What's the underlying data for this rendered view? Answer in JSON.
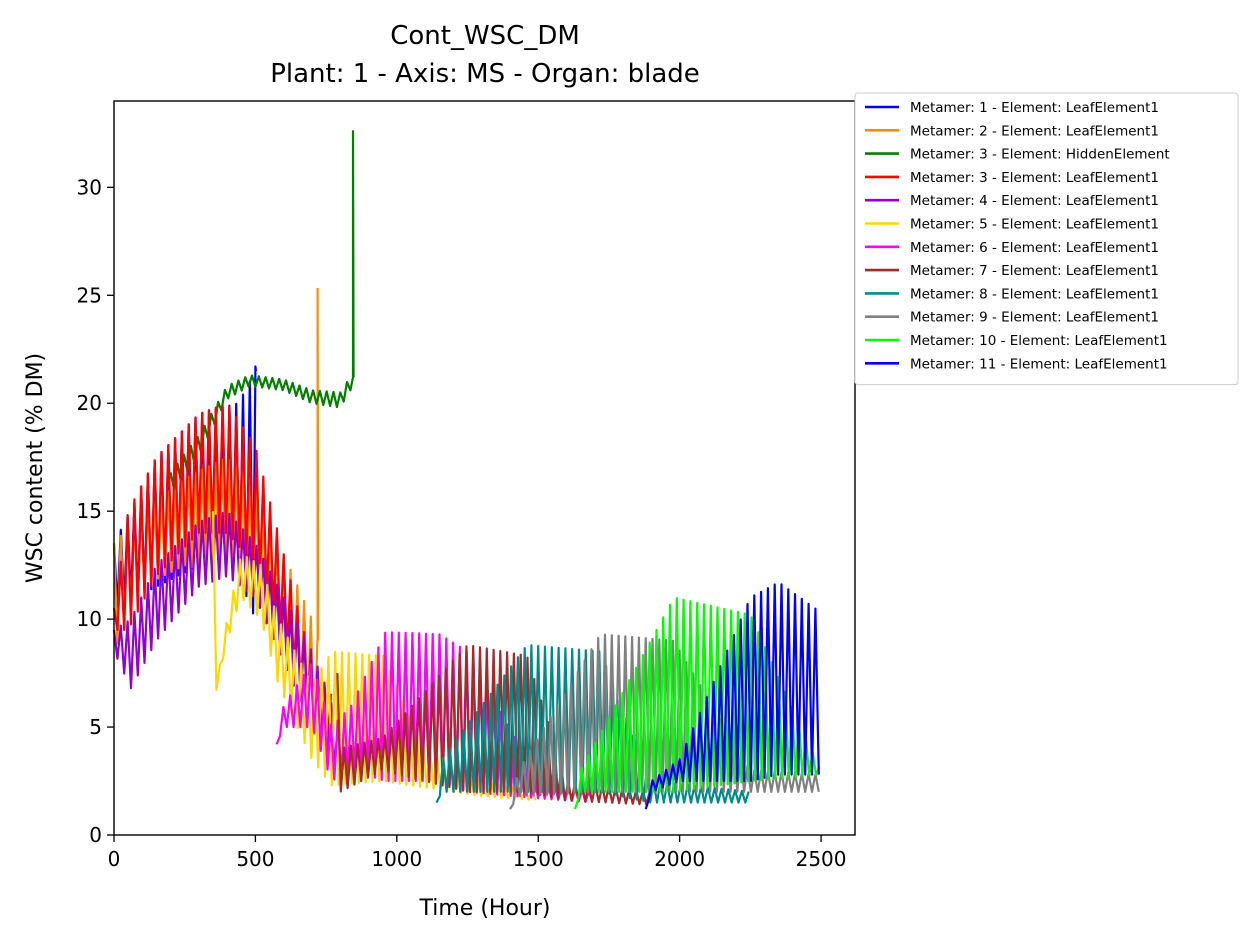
{
  "chart_data": {
    "type": "line",
    "title": "Cont_WSC_DM",
    "subtitle": "Plant: 1 - Axis: MS - Organ: blade",
    "xlabel": "Time (Hour)",
    "ylabel": "WSC content (% DM)",
    "xlim": [
      0,
      2620
    ],
    "ylim": [
      0,
      34
    ],
    "xticks": [
      0,
      500,
      1000,
      1500,
      2000,
      2500
    ],
    "yticks": [
      0,
      5,
      10,
      15,
      20,
      25,
      30
    ],
    "xtick_labels": [
      "0",
      "500",
      "1000",
      "1500",
      "2000",
      "2500"
    ],
    "ytick_labels": [
      "0",
      "5",
      "10",
      "15",
      "20",
      "25",
      "30"
    ],
    "grid": false,
    "legend_position": "outside-right",
    "series": [
      {
        "name": "Metamer: 1 - Element: LeafElement1",
        "color": "#0000ff",
        "start": 0,
        "end": 500,
        "osc_day": 24,
        "env": [
          [
            0,
            10.5,
            13.5
          ],
          [
            150,
            11.5,
            17.5
          ],
          [
            300,
            12.5,
            19.5
          ],
          [
            440,
            12.0,
            20.0
          ],
          [
            500,
            10.0,
            21.5
          ]
        ],
        "spike": [
          500,
          21.7
        ]
      },
      {
        "name": "Metamer: 2 - Element: LeafElement1",
        "color": "#ff8c00",
        "start": 0,
        "end": 725,
        "osc_day": 24,
        "env": [
          [
            0,
            8.5,
            13.5
          ],
          [
            100,
            11.5,
            15.0
          ],
          [
            250,
            12.5,
            16.5
          ],
          [
            400,
            12.0,
            17.5
          ],
          [
            500,
            11.0,
            16.0
          ],
          [
            600,
            8.0,
            13.0
          ],
          [
            700,
            5.0,
            10.0
          ],
          [
            725,
            4.0,
            9.0
          ]
        ],
        "spike": [
          720,
          25.3
        ]
      },
      {
        "name": "Metamer: 3 - Element: HiddenElement",
        "color": "#008000",
        "start": 200,
        "end": 845,
        "osc_day": 24,
        "env": [
          [
            200,
            15.8,
            16.8
          ],
          [
            300,
            17.5,
            18.5
          ],
          [
            400,
            20.2,
            20.8
          ],
          [
            480,
            20.8,
            21.3
          ],
          [
            600,
            20.6,
            21.1
          ],
          [
            700,
            20.0,
            20.6
          ],
          [
            800,
            19.8,
            20.5
          ],
          [
            835,
            20.6,
            21.2
          ]
        ],
        "spike": [
          845,
          32.6
        ]
      },
      {
        "name": "Metamer: 3 - Element: LeafElement1",
        "color": "#ff0000",
        "start": 0,
        "end": 770,
        "osc_day": 24,
        "env": [
          [
            0,
            9.5,
            10.5
          ],
          [
            50,
            9.5,
            15.0
          ],
          [
            150,
            12.0,
            17.5
          ],
          [
            300,
            14.0,
            19.5
          ],
          [
            400,
            14.0,
            20.0
          ],
          [
            500,
            12.5,
            18.0
          ],
          [
            600,
            9.0,
            13.0
          ],
          [
            700,
            5.5,
            8.0
          ],
          [
            770,
            4.5,
            6.5
          ]
        ]
      },
      {
        "name": "Metamer: 4 - Element: LeafElement1",
        "color": "#9400d3",
        "start": 0,
        "end": 830,
        "osc_day": 24,
        "env": [
          [
            0,
            8.5,
            9.5
          ],
          [
            60,
            6.8,
            10.0
          ],
          [
            150,
            9.0,
            12.5
          ],
          [
            300,
            11.5,
            14.5
          ],
          [
            400,
            12.0,
            15.0
          ],
          [
            500,
            11.0,
            13.5
          ],
          [
            600,
            8.0,
            11.0
          ],
          [
            700,
            5.0,
            8.5
          ],
          [
            800,
            2.5,
            5.0
          ],
          [
            830,
            2.5,
            4.0
          ]
        ]
      },
      {
        "name": "Metamer: 5 - Element: LeafElement1",
        "color": "#ffd700",
        "start": 350,
        "end": 1500,
        "osc_day": 24,
        "env": [
          [
            350,
            15.0,
            15.0
          ],
          [
            355,
            6.3,
            6.3
          ],
          [
            400,
            9.0,
            10.0
          ],
          [
            450,
            11.0,
            13.0
          ],
          [
            520,
            10.0,
            12.5
          ],
          [
            580,
            7.0,
            10.0
          ],
          [
            700,
            3.5,
            7.0
          ],
          [
            770,
            2.3,
            8.5
          ],
          [
            950,
            2.5,
            8.3
          ],
          [
            1100,
            2.2,
            4.0
          ],
          [
            1300,
            1.8,
            2.5
          ],
          [
            1500,
            1.6,
            2.0
          ]
        ]
      },
      {
        "name": "Metamer: 6 - Element: LeafElement1",
        "color": "#ff00ff",
        "start": 575,
        "end": 1700,
        "osc_day": 24,
        "env": [
          [
            575,
            4.2,
            4.2
          ],
          [
            600,
            5.0,
            6.0
          ],
          [
            700,
            5.0,
            8.0
          ],
          [
            770,
            2.5,
            5.0
          ],
          [
            840,
            3.0,
            6.0
          ],
          [
            960,
            2.5,
            9.4
          ],
          [
            1150,
            2.5,
            9.3
          ],
          [
            1250,
            2.0,
            8.5
          ],
          [
            1500,
            1.7,
            2.5
          ],
          [
            1700,
            1.5,
            2.0
          ]
        ]
      },
      {
        "name": "Metamer: 7 - Element: LeafElement1",
        "color": "#a52a2a",
        "start": 790,
        "end": 1900,
        "osc_day": 24,
        "env": [
          [
            790,
            7.5,
            7.5
          ],
          [
            800,
            2.0,
            4.0
          ],
          [
            950,
            3.0,
            4.5
          ],
          [
            1250,
            2.0,
            8.8
          ],
          [
            1460,
            2.0,
            8.3
          ],
          [
            1600,
            1.6,
            2.5
          ],
          [
            1900,
            1.4,
            2.0
          ]
        ]
      },
      {
        "name": "Metamer: 8 - Element: LeafElement1",
        "color": "#008b8b",
        "start": 1140,
        "end": 2250,
        "osc_day": 24,
        "env": [
          [
            1140,
            1.5,
            1.5
          ],
          [
            1160,
            2.0,
            3.5
          ],
          [
            1460,
            2.0,
            8.8
          ],
          [
            1720,
            2.0,
            8.5
          ],
          [
            1900,
            1.5,
            2.5
          ],
          [
            2250,
            1.5,
            2.0
          ]
        ]
      },
      {
        "name": "Metamer: 9 - Element: LeafElement1",
        "color": "#808080",
        "start": 1400,
        "end": 2500,
        "osc_day": 24,
        "env": [
          [
            1400,
            1.2,
            1.2
          ],
          [
            1430,
            1.8,
            3.0
          ],
          [
            1720,
            2.0,
            9.3
          ],
          [
            1980,
            2.0,
            9.0
          ],
          [
            2250,
            2.0,
            3.0
          ],
          [
            2500,
            2.0,
            2.8
          ]
        ]
      },
      {
        "name": "Metamer: 10 - Element: LeafElement1",
        "color": "#00ff00",
        "start": 1630,
        "end": 2500,
        "osc_day": 24,
        "env": [
          [
            1630,
            1.2,
            1.2
          ],
          [
            1650,
            2.0,
            3.0
          ],
          [
            1980,
            2.0,
            11.0
          ],
          [
            2250,
            2.5,
            10.2
          ],
          [
            2500,
            2.8,
            3.0
          ]
        ]
      },
      {
        "name": "Metamer: 11 - Element: LeafElement1",
        "color": "#0000ff",
        "start": 1880,
        "end": 2500,
        "osc_day": 24,
        "env": [
          [
            1880,
            1.2,
            1.2
          ],
          [
            1900,
            2.0,
            2.5
          ],
          [
            2000,
            2.5,
            3.5
          ],
          [
            2250,
            2.5,
            11.0
          ],
          [
            2350,
            2.8,
            11.7
          ],
          [
            2500,
            2.8,
            10.3
          ]
        ]
      }
    ]
  }
}
